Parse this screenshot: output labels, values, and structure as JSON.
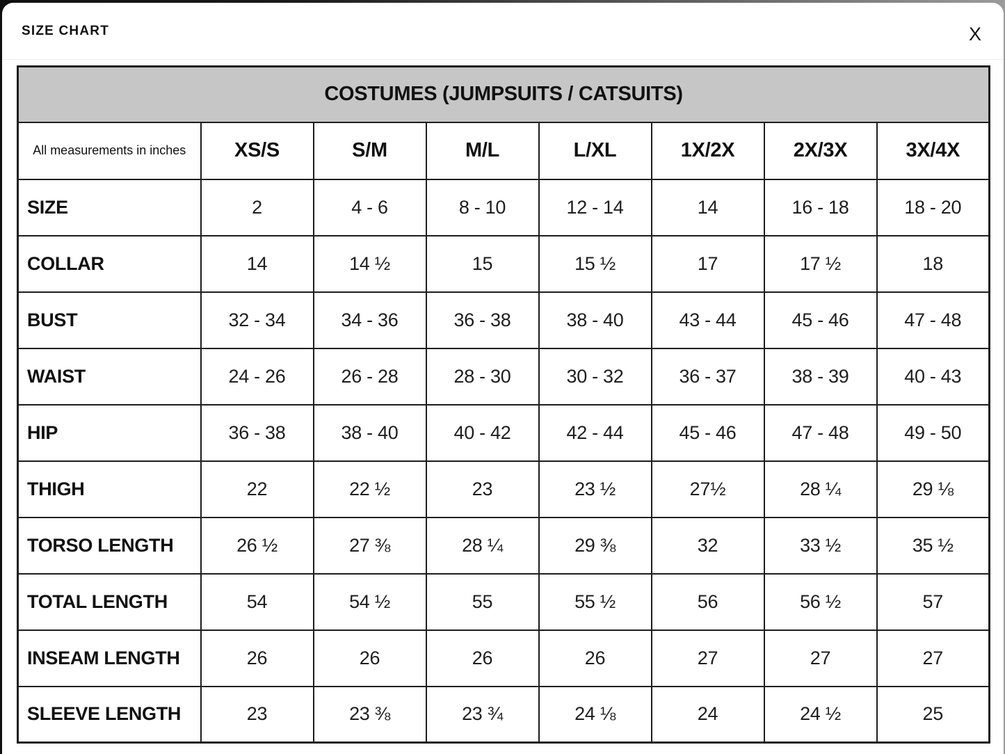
{
  "modal": {
    "title": "SIZE CHART",
    "close_label": "X"
  },
  "table": {
    "title": "COSTUMES (JUMPSUITS / CATSUITS)",
    "corner_label": "All measurements in inches",
    "columns": [
      "XS/S",
      "S/M",
      "M/L",
      "L/XL",
      "1X/2X",
      "2X/3X",
      "3X/4X"
    ],
    "rows": [
      {
        "label": "SIZE",
        "values": [
          "2",
          "4 - 6",
          "8 - 10",
          "12 - 14",
          "14",
          "16 - 18",
          "18 - 20"
        ]
      },
      {
        "label": "COLLAR",
        "values": [
          "14",
          "14 ½",
          "15",
          "15 ½",
          "17",
          "17 ½",
          "18"
        ]
      },
      {
        "label": "BUST",
        "values": [
          "32 - 34",
          "34 - 36",
          "36 - 38",
          "38 - 40",
          "43 - 44",
          "45 - 46",
          "47 - 48"
        ]
      },
      {
        "label": "WAIST",
        "values": [
          "24 - 26",
          "26 - 28",
          "28 - 30",
          "30 - 32",
          "36 - 37",
          "38 - 39",
          "40 - 43"
        ]
      },
      {
        "label": "HIP",
        "values": [
          "36 - 38",
          "38 - 40",
          "40 - 42",
          "42 - 44",
          "45 - 46",
          "47 - 48",
          "49 - 50"
        ]
      },
      {
        "label": "THIGH",
        "values": [
          "22",
          "22 ½",
          "23",
          "23 ½",
          "27½",
          "28 ¼",
          "29 ⅛"
        ]
      },
      {
        "label": "TORSO LENGTH",
        "values": [
          "26 ½",
          "27 ⅜",
          "28 ¼",
          "29 ⅜",
          "32",
          "33 ½",
          "35 ½"
        ]
      },
      {
        "label": "TOTAL LENGTH",
        "values": [
          "54",
          "54 ½",
          "55",
          "55 ½",
          "56",
          "56 ½",
          "57"
        ]
      },
      {
        "label": "INSEAM LENGTH",
        "values": [
          "26",
          "26",
          "26",
          "26",
          "27",
          "27",
          "27"
        ]
      },
      {
        "label": "SLEEVE LENGTH",
        "values": [
          "23",
          "23 ⅜",
          "23 ¾",
          "24 ⅛",
          "24",
          "24 ½",
          "25"
        ]
      }
    ],
    "colors": {
      "table_header_bg": "#c6c6c6",
      "table_border": "#1d1d1d",
      "text": "#111111",
      "modal_bg": "#ffffff"
    }
  }
}
